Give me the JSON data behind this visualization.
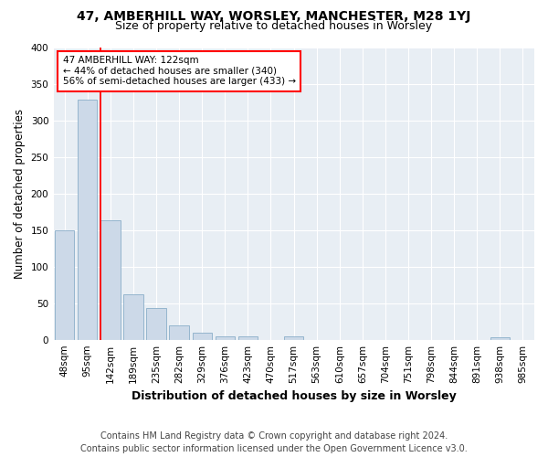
{
  "title": "47, AMBERHILL WAY, WORSLEY, MANCHESTER, M28 1YJ",
  "subtitle": "Size of property relative to detached houses in Worsley",
  "xlabel": "Distribution of detached houses by size in Worsley",
  "ylabel": "Number of detached properties",
  "footer": "Contains HM Land Registry data © Crown copyright and database right 2024.\nContains public sector information licensed under the Open Government Licence v3.0.",
  "bar_labels": [
    "48sqm",
    "95sqm",
    "142sqm",
    "189sqm",
    "235sqm",
    "282sqm",
    "329sqm",
    "376sqm",
    "423sqm",
    "470sqm",
    "517sqm",
    "563sqm",
    "610sqm",
    "657sqm",
    "704sqm",
    "751sqm",
    "798sqm",
    "844sqm",
    "891sqm",
    "938sqm",
    "985sqm"
  ],
  "bar_values": [
    150,
    328,
    163,
    62,
    43,
    19,
    9,
    4,
    4,
    0,
    4,
    0,
    0,
    0,
    0,
    0,
    0,
    0,
    0,
    3,
    0
  ],
  "bar_color": "#ccd9e8",
  "bar_edge_color": "#8aaec8",
  "annotation_text": "47 AMBERHILL WAY: 122sqm\n← 44% of detached houses are smaller (340)\n56% of semi-detached houses are larger (433) →",
  "vline_x": 1.55,
  "ylim": [
    0,
    400
  ],
  "yticks": [
    0,
    50,
    100,
    150,
    200,
    250,
    300,
    350,
    400
  ],
  "bg_color": "#ffffff",
  "plot_bg_color": "#e8eef4",
  "title_fontsize": 10,
  "subtitle_fontsize": 9,
  "xlabel_fontsize": 9,
  "ylabel_fontsize": 8.5,
  "tick_fontsize": 7.5,
  "footer_fontsize": 7,
  "ann_fontsize": 7.5
}
